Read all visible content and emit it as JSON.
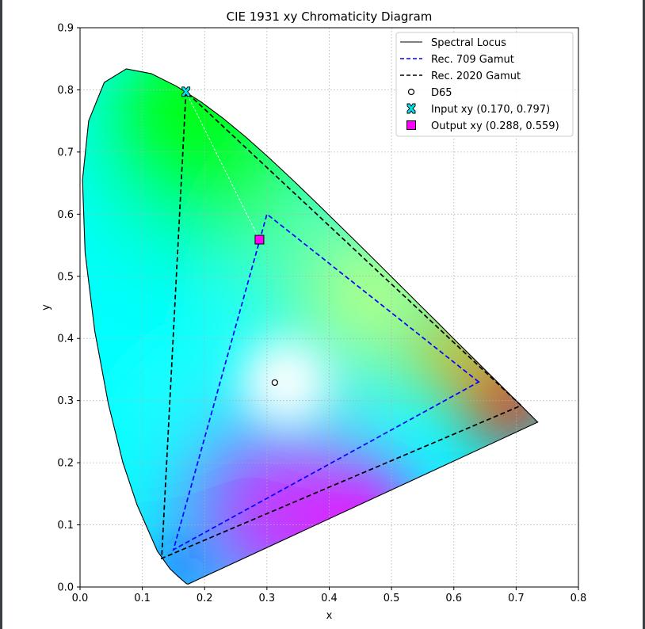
{
  "chart_data": {
    "type": "scatter",
    "title": "CIE 1931 xy Chromaticity Diagram",
    "xlabel": "x",
    "ylabel": "y",
    "xlim": [
      0.0,
      0.8
    ],
    "ylim": [
      0.0,
      0.9
    ],
    "grid": true,
    "legend_position": "top-right",
    "x_ticks": [
      "0.0",
      "0.1",
      "0.2",
      "0.3",
      "0.4",
      "0.5",
      "0.6",
      "0.7",
      "0.8"
    ],
    "y_ticks": [
      "0.0",
      "0.1",
      "0.2",
      "0.3",
      "0.4",
      "0.5",
      "0.6",
      "0.7",
      "0.8",
      "0.9"
    ],
    "spectral_locus": {
      "x": [
        0.1741,
        0.1738,
        0.1733,
        0.1726,
        0.1714,
        0.1689,
        0.1644,
        0.1566,
        0.144,
        0.1241,
        0.0913,
        0.0687,
        0.0454,
        0.0235,
        0.0082,
        0.0039,
        0.0139,
        0.0389,
        0.0743,
        0.1142,
        0.1547,
        0.1929,
        0.2296,
        0.2658,
        0.3016,
        0.3373,
        0.3731,
        0.4087,
        0.4441,
        0.4788,
        0.5125,
        0.5448,
        0.5752,
        0.6029,
        0.627,
        0.6482,
        0.6658,
        0.6801,
        0.6915,
        0.7006,
        0.7079,
        0.714,
        0.719,
        0.723,
        0.726,
        0.7283,
        0.73,
        0.7311,
        0.732,
        0.7347
      ],
      "y": [
        0.005,
        0.0049,
        0.0048,
        0.0048,
        0.0051,
        0.0069,
        0.0109,
        0.0177,
        0.0297,
        0.0578,
        0.1327,
        0.2007,
        0.295,
        0.4127,
        0.5384,
        0.6548,
        0.7502,
        0.812,
        0.8338,
        0.8262,
        0.8059,
        0.7816,
        0.7543,
        0.7243,
        0.6923,
        0.6589,
        0.6245,
        0.5896,
        0.5547,
        0.5202,
        0.4866,
        0.4544,
        0.4242,
        0.3965,
        0.3725,
        0.3514,
        0.334,
        0.3197,
        0.3083,
        0.2993,
        0.292,
        0.2859,
        0.2809,
        0.277,
        0.274,
        0.2717,
        0.27,
        0.2689,
        0.268,
        0.2653
      ]
    },
    "series": [
      {
        "name": "Spectral Locus",
        "style": "solid",
        "color": "#000000"
      },
      {
        "name": "Rec. 709 Gamut",
        "style": "dashed",
        "color": "#0000ff",
        "x": [
          0.64,
          0.3,
          0.15
        ],
        "y": [
          0.33,
          0.6,
          0.06
        ]
      },
      {
        "name": "Rec. 2020 Gamut",
        "style": "dashed",
        "color": "#000000",
        "x": [
          0.708,
          0.17,
          0.131
        ],
        "y": [
          0.292,
          0.797,
          0.046
        ]
      },
      {
        "name": "D65",
        "marker": "circle",
        "color": "#ffffff",
        "x": [
          0.3127
        ],
        "y": [
          0.329
        ]
      },
      {
        "name": "Input xy (0.170, 0.797)",
        "marker": "x",
        "color": "#00e5ee",
        "x": [
          0.17
        ],
        "y": [
          0.797
        ]
      },
      {
        "name": "Output xy (0.288, 0.559)",
        "marker": "square",
        "color": "#ff00ff",
        "x": [
          0.288
        ],
        "y": [
          0.559
        ]
      }
    ],
    "mapping_line": {
      "from": [
        0.17,
        0.797
      ],
      "to": [
        0.288,
        0.559
      ],
      "color": "#ffffff",
      "style": "dashed"
    }
  }
}
